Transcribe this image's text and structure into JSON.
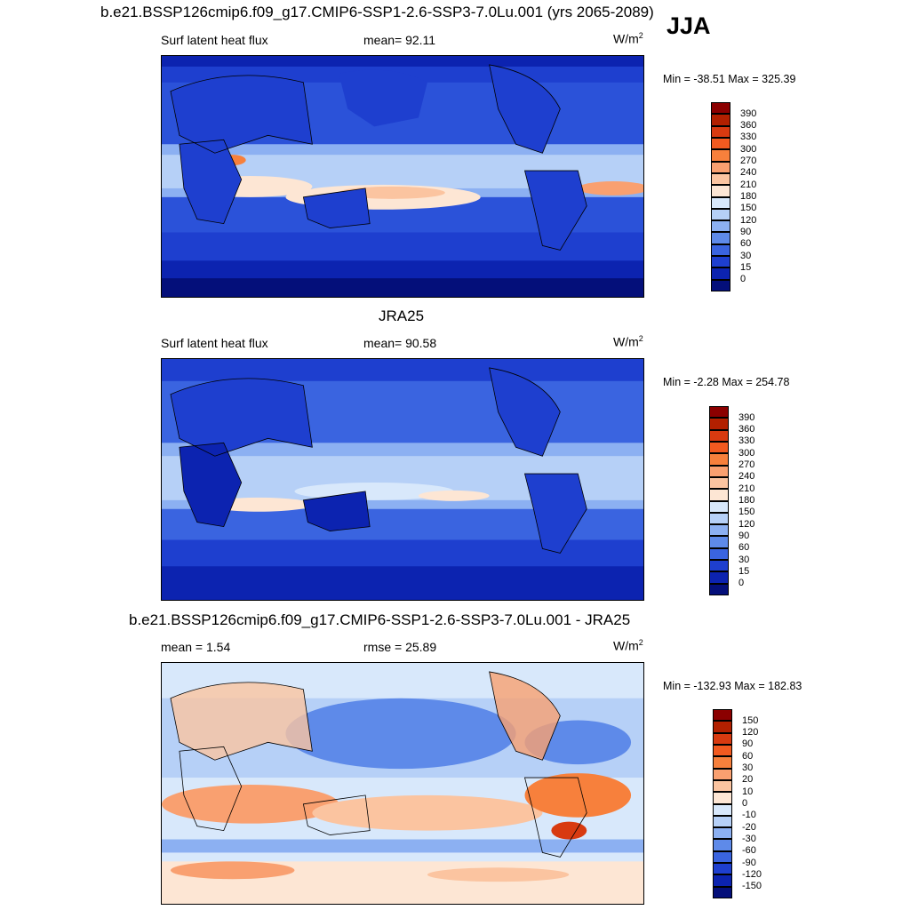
{
  "season": "JJA",
  "panels": [
    {
      "title": "b.e21.BSSP126cmip6.f09_g17.CMIP6-SSP1-2.6-SSP3-7.0Lu.001 (yrs 2065-2089)",
      "left_label": "Surf latent heat flux",
      "center_label": "mean=  92.11",
      "units_base": "W/m",
      "units_exp": "2",
      "minmax": "Min = -38.51 Max = 325.39",
      "colorbar": {
        "labels": [
          "390",
          "360",
          "330",
          "300",
          "270",
          "240",
          "210",
          "180",
          "150",
          "120",
          "90",
          "60",
          "30",
          "15",
          "0"
        ],
        "colors": [
          "#8b0000",
          "#b22000",
          "#d83a10",
          "#f25a20",
          "#f7803c",
          "#f9a070",
          "#fbc4a0",
          "#fde6d4",
          "#d8e8fb",
          "#b6d0f7",
          "#8cb0f2",
          "#5e8ae9",
          "#3a64e0",
          "#1e3fcf",
          "#0c23b0",
          "#040f7a"
        ]
      }
    },
    {
      "title": "JRA25",
      "left_label": "Surf latent heat flux",
      "center_label": "mean=  90.58",
      "units_base": "W/m",
      "units_exp": "2",
      "minmax": "Min =  -2.28 Max = 254.78",
      "colorbar": {
        "labels": [
          "390",
          "360",
          "330",
          "300",
          "270",
          "240",
          "210",
          "180",
          "150",
          "120",
          "90",
          "60",
          "30",
          "15",
          "0"
        ],
        "colors": [
          "#8b0000",
          "#b22000",
          "#d83a10",
          "#f25a20",
          "#f7803c",
          "#f9a070",
          "#fbc4a0",
          "#fde6d4",
          "#d8e8fb",
          "#b6d0f7",
          "#8cb0f2",
          "#5e8ae9",
          "#3a64e0",
          "#1e3fcf",
          "#0c23b0",
          "#040f7a"
        ]
      }
    },
    {
      "title": "b.e21.BSSP126cmip6.f09_g17.CMIP6-SSP1-2.6-SSP3-7.0Lu.001 - JRA25",
      "left_label": "mean =   1.54",
      "center_label": "rmse =  25.89",
      "units_base": "W/m",
      "units_exp": "2",
      "minmax": "Min = -132.93 Max = 182.83",
      "colorbar": {
        "labels": [
          "150",
          "120",
          "90",
          "60",
          "30",
          "20",
          "10",
          "0",
          "-10",
          "-20",
          "-30",
          "-60",
          "-90",
          "-120",
          "-150"
        ],
        "colors": [
          "#8b0000",
          "#b22000",
          "#d83a10",
          "#f25a20",
          "#f7803c",
          "#f9a070",
          "#fbc4a0",
          "#fde6d4",
          "#d8e8fb",
          "#b6d0f7",
          "#8cb0f2",
          "#5e8ae9",
          "#3a64e0",
          "#1e3fcf",
          "#0c23b0",
          "#040f7a"
        ]
      }
    }
  ],
  "colors": {
    "deep_blue": "#040f7a",
    "mid_blue": "#2b52d9",
    "light_blue": "#b6d0f7",
    "pale": "#fde6d4",
    "orange": "#f7803c",
    "red": "#d83a10"
  }
}
